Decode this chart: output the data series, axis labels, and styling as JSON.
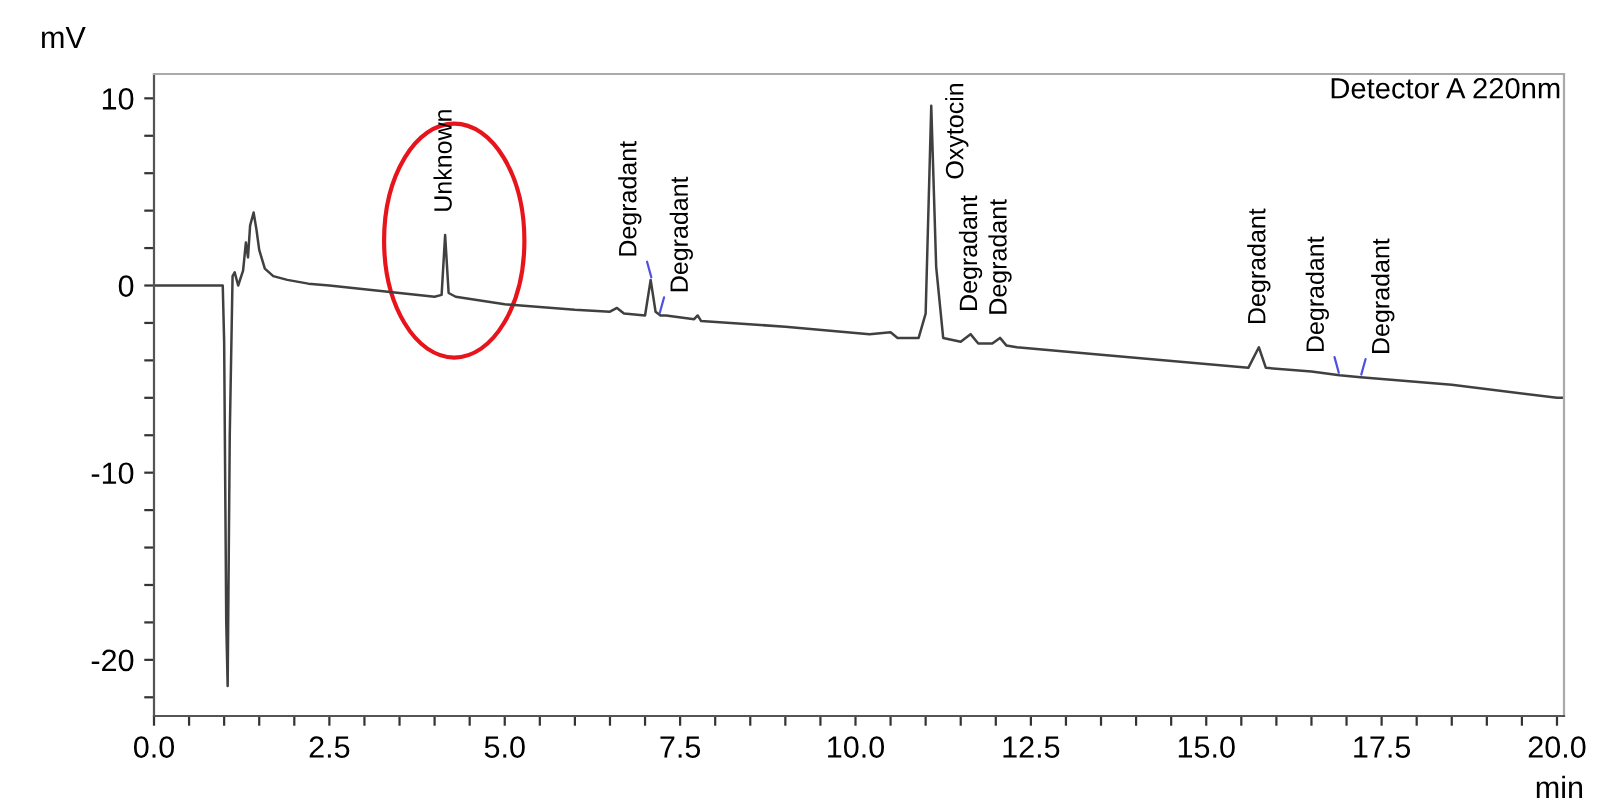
{
  "chart_data": {
    "type": "line",
    "xlabel": "min",
    "ylabel": "mV",
    "xlim": [
      0,
      20.1
    ],
    "ylim": [
      -23,
      11.3
    ],
    "xticks": [
      {
        "value": 0,
        "label": "0.0"
      },
      {
        "value": 0.5,
        "label": null
      },
      {
        "value": 1,
        "label": null
      },
      {
        "value": 1.5,
        "label": null
      },
      {
        "value": 2,
        "label": null
      },
      {
        "value": 2.5,
        "label": "2.5"
      },
      {
        "value": 3,
        "label": null
      },
      {
        "value": 3.5,
        "label": null
      },
      {
        "value": 4,
        "label": null
      },
      {
        "value": 4.5,
        "label": null
      },
      {
        "value": 5,
        "label": "5.0"
      },
      {
        "value": 5.5,
        "label": null
      },
      {
        "value": 6,
        "label": null
      },
      {
        "value": 6.5,
        "label": null
      },
      {
        "value": 7,
        "label": null
      },
      {
        "value": 7.5,
        "label": "7.5"
      },
      {
        "value": 8,
        "label": null
      },
      {
        "value": 8.5,
        "label": null
      },
      {
        "value": 9,
        "label": null
      },
      {
        "value": 9.5,
        "label": null
      },
      {
        "value": 10,
        "label": "10.0"
      },
      {
        "value": 10.5,
        "label": null
      },
      {
        "value": 11,
        "label": null
      },
      {
        "value": 11.5,
        "label": null
      },
      {
        "value": 12,
        "label": null
      },
      {
        "value": 12.5,
        "label": "12.5"
      },
      {
        "value": 13,
        "label": null
      },
      {
        "value": 13.5,
        "label": null
      },
      {
        "value": 14,
        "label": null
      },
      {
        "value": 14.5,
        "label": null
      },
      {
        "value": 15,
        "label": "15.0"
      },
      {
        "value": 15.5,
        "label": null
      },
      {
        "value": 16,
        "label": null
      },
      {
        "value": 16.5,
        "label": null
      },
      {
        "value": 17,
        "label": null
      },
      {
        "value": 17.5,
        "label": "17.5"
      },
      {
        "value": 18,
        "label": null
      },
      {
        "value": 18.5,
        "label": null
      },
      {
        "value": 19,
        "label": null
      },
      {
        "value": 19.5,
        "label": null
      },
      {
        "value": 20,
        "label": "20.0"
      }
    ],
    "yticks": [
      {
        "value": -22,
        "label": null
      },
      {
        "value": -20,
        "label": "-20"
      },
      {
        "value": -18,
        "label": null
      },
      {
        "value": -16,
        "label": null
      },
      {
        "value": -14,
        "label": null
      },
      {
        "value": -12,
        "label": null
      },
      {
        "value": -10,
        "label": "-10"
      },
      {
        "value": -8,
        "label": null
      },
      {
        "value": -6,
        "label": null
      },
      {
        "value": -4,
        "label": null
      },
      {
        "value": -2,
        "label": null
      },
      {
        "value": 0,
        "label": "0"
      },
      {
        "value": 2,
        "label": null
      },
      {
        "value": 4,
        "label": null
      },
      {
        "value": 6,
        "label": null
      },
      {
        "value": 8,
        "label": null
      },
      {
        "value": 10,
        "label": "10"
      }
    ],
    "grid": false,
    "marker": "none",
    "line_style": "solid",
    "series": [
      {
        "color": "#404040",
        "x": [
          0,
          0.98,
          1.0,
          1.03,
          1.05,
          1.08,
          1.12,
          1.15,
          1.2,
          1.27,
          1.31,
          1.34,
          1.37,
          1.42,
          1.46,
          1.5,
          1.58,
          1.7,
          1.9,
          2.2,
          2.5,
          3.0,
          3.5,
          4.0,
          4.1,
          4.15,
          4.2,
          4.3,
          5.0,
          6.0,
          6.5,
          6.6,
          6.7,
          7.0,
          7.08,
          7.15,
          7.22,
          7.3,
          7.7,
          7.75,
          7.8,
          9.0,
          10.2,
          10.5,
          10.6,
          10.9,
          11.0,
          11.08,
          11.15,
          11.25,
          11.5,
          11.64,
          11.75,
          11.95,
          12.06,
          12.15,
          12.3,
          13.5,
          15.6,
          15.75,
          15.85,
          16.5,
          16.9,
          17.2,
          18.5,
          20.0,
          20.1
        ],
        "values": [
          0,
          0,
          -3,
          -18,
          -21.4,
          -8,
          0.5,
          0.7,
          0,
          0.8,
          2.3,
          1.5,
          3.2,
          3.9,
          3.0,
          1.9,
          0.9,
          0.5,
          0.3,
          0.1,
          0,
          -0.2,
          -0.4,
          -0.6,
          -0.5,
          2.7,
          -0.4,
          -0.6,
          -1.0,
          -1.3,
          -1.4,
          -1.2,
          -1.5,
          -1.6,
          0.3,
          -1.4,
          -1.6,
          -1.6,
          -1.8,
          -1.6,
          -1.9,
          -2.2,
          -2.6,
          -2.5,
          -2.8,
          -2.8,
          -1.5,
          9.6,
          1.0,
          -2.8,
          -3.0,
          -2.6,
          -3.1,
          -3.1,
          -2.8,
          -3.2,
          -3.3,
          -3.7,
          -4.4,
          -3.3,
          -4.4,
          -4.6,
          -4.8,
          -4.9,
          -5.3,
          -6.0,
          -6.0
        ]
      }
    ],
    "annotations": [
      "Detector A 220nm",
      {
        "text": "Unknown",
        "x": 4.15,
        "y": 2.7
      },
      {
        "text": "Degradant",
        "x": 7.1,
        "y": 0.3
      },
      {
        "text": "Degradant",
        "x": 7.2,
        "y": -1.6
      },
      {
        "text": "Oxytocin",
        "x": 11.08,
        "y": 9.6
      },
      {
        "text": "Degradant",
        "x": 11.64,
        "y": -2.6
      },
      {
        "text": "Degradant",
        "x": 12.06,
        "y": -2.8
      },
      {
        "text": "Degradant",
        "x": 15.75,
        "y": -3.3
      },
      {
        "text": "Degradant",
        "x": 16.9,
        "y": -4.8
      },
      {
        "text": "Degradant",
        "x": 17.2,
        "y": -4.9
      }
    ]
  }
}
